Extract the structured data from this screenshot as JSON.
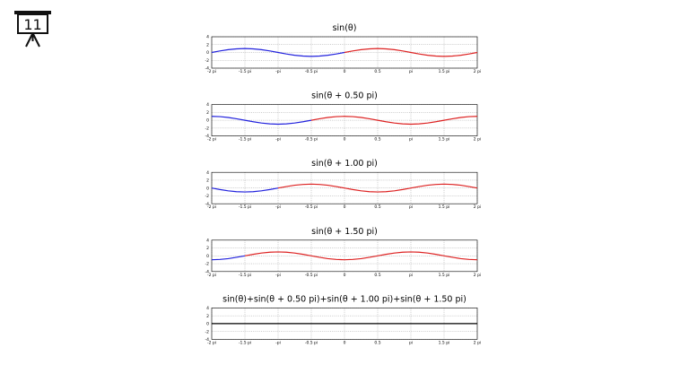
{
  "slide_number": "11",
  "chart_data": [
    {
      "type": "line",
      "title": "sin(θ)",
      "x": [
        -6.28,
        -5.89,
        -5.5,
        -5.11,
        -4.71,
        -4.32,
        -3.93,
        -3.53,
        -3.14,
        -2.75,
        -2.36,
        -1.96,
        -1.57,
        -1.18,
        -0.79,
        -0.39,
        0,
        0.39,
        0.79,
        1.18,
        1.57,
        1.96,
        2.36,
        2.75,
        3.14,
        3.53,
        3.93,
        4.32,
        4.71,
        5.11,
        5.5,
        5.89,
        6.28
      ],
      "series": [
        {
          "color": "#2222dd",
          "values": [
            0,
            0.38,
            0.71,
            0.92,
            1,
            0.92,
            0.71,
            0.38,
            0,
            -0.38,
            -0.71,
            -0.92,
            -1,
            -0.92,
            -0.71,
            -0.38,
            0,
            null,
            null,
            null,
            null,
            null,
            null,
            null,
            null,
            null,
            null,
            null,
            null,
            null,
            null,
            null,
            null
          ]
        },
        {
          "color": "#dd2222",
          "values": [
            null,
            null,
            null,
            null,
            null,
            null,
            null,
            null,
            null,
            null,
            null,
            null,
            null,
            null,
            null,
            null,
            0,
            0.38,
            0.71,
            0.92,
            1,
            0.92,
            0.71,
            0.38,
            0,
            -0.38,
            -0.71,
            -0.92,
            -1,
            -0.92,
            -0.71,
            -0.38,
            0
          ]
        }
      ],
      "xlim": [
        -6.28,
        6.28
      ],
      "xticks": [
        {
          "value": -6.28,
          "label": "-2 pi"
        },
        {
          "value": -4.71,
          "label": "-1.5 pi"
        },
        {
          "value": -3.14,
          "label": "-pi"
        },
        {
          "value": -1.57,
          "label": "-0.5 pi"
        },
        0,
        {
          "value": 1.57,
          "label": "0.5"
        },
        {
          "value": 3.14,
          "label": "pi"
        },
        {
          "value": 4.71,
          "label": "1.5 pi"
        },
        {
          "value": 6.28,
          "label": "2 pi"
        }
      ],
      "ylim": [
        -4,
        4
      ],
      "yticks": [
        -4,
        -2,
        0,
        2,
        4
      ],
      "grid": true
    },
    {
      "type": "line",
      "title": "sin(θ + 0.50 pi)",
      "x": [
        -6.28,
        -5.89,
        -5.5,
        -5.11,
        -4.71,
        -4.32,
        -3.93,
        -3.53,
        -3.14,
        -2.75,
        -2.36,
        -1.96,
        -1.57,
        -1.18,
        -0.79,
        -0.39,
        0,
        0.39,
        0.79,
        1.18,
        1.57,
        1.96,
        2.36,
        2.75,
        3.14,
        3.53,
        3.93,
        4.32,
        4.71,
        5.11,
        5.5,
        5.89,
        6.28
      ],
      "series": [
        {
          "color": "#2222dd",
          "values": [
            1,
            0.92,
            0.71,
            0.38,
            0,
            -0.38,
            -0.71,
            -0.92,
            -1,
            -0.92,
            -0.71,
            -0.38,
            0,
            null,
            null,
            null,
            null,
            null,
            null,
            null,
            null,
            null,
            null,
            null,
            null,
            null,
            null,
            null,
            null,
            null,
            null,
            null,
            null
          ]
        },
        {
          "color": "#dd2222",
          "values": [
            null,
            null,
            null,
            null,
            null,
            null,
            null,
            null,
            null,
            null,
            null,
            null,
            0,
            0.38,
            0.71,
            0.92,
            1,
            0.92,
            0.71,
            0.38,
            0,
            -0.38,
            -0.71,
            -0.92,
            -1,
            -0.92,
            -0.71,
            -0.38,
            0,
            0.38,
            0.71,
            0.92,
            1
          ]
        }
      ],
      "xlim": [
        -6.28,
        6.28
      ],
      "xticks": [
        {
          "value": -6.28,
          "label": "-2 pi"
        },
        {
          "value": -4.71,
          "label": "-1.5 pi"
        },
        {
          "value": -3.14,
          "label": "-pi"
        },
        {
          "value": -1.57,
          "label": "-0.5 pi"
        },
        0,
        {
          "value": 1.57,
          "label": "0.5"
        },
        {
          "value": 3.14,
          "label": "pi"
        },
        {
          "value": 4.71,
          "label": "1.5 pi"
        },
        {
          "value": 6.28,
          "label": "2 pi"
        }
      ],
      "ylim": [
        -4,
        4
      ],
      "yticks": [
        -4,
        -2,
        0,
        2,
        4
      ],
      "grid": true
    },
    {
      "type": "line",
      "title": "sin(θ + 1.00 pi)",
      "x": [
        -6.28,
        -5.89,
        -5.5,
        -5.11,
        -4.71,
        -4.32,
        -3.93,
        -3.53,
        -3.14,
        -2.75,
        -2.36,
        -1.96,
        -1.57,
        -1.18,
        -0.79,
        -0.39,
        0,
        0.39,
        0.79,
        1.18,
        1.57,
        1.96,
        2.36,
        2.75,
        3.14,
        3.53,
        3.93,
        4.32,
        4.71,
        5.11,
        5.5,
        5.89,
        6.28
      ],
      "series": [
        {
          "color": "#2222dd",
          "values": [
            0,
            -0.38,
            -0.71,
            -0.92,
            -1,
            -0.92,
            -0.71,
            -0.38,
            0,
            null,
            null,
            null,
            null,
            null,
            null,
            null,
            null,
            null,
            null,
            null,
            null,
            null,
            null,
            null,
            null,
            null,
            null,
            null,
            null,
            null,
            null,
            null,
            null
          ]
        },
        {
          "color": "#dd2222",
          "values": [
            null,
            null,
            null,
            null,
            null,
            null,
            null,
            null,
            0,
            0.38,
            0.71,
            0.92,
            1,
            0.92,
            0.71,
            0.38,
            0,
            -0.38,
            -0.71,
            -0.92,
            -1,
            -0.92,
            -0.71,
            -0.38,
            0,
            0.38,
            0.71,
            0.92,
            1,
            0.92,
            0.71,
            0.38,
            0
          ]
        }
      ],
      "xlim": [
        -6.28,
        6.28
      ],
      "xticks": [
        {
          "value": -6.28,
          "label": "-2 pi"
        },
        {
          "value": -4.71,
          "label": "-1.5 pi"
        },
        {
          "value": -3.14,
          "label": "-pi"
        },
        {
          "value": -1.57,
          "label": "-0.5 pi"
        },
        0,
        {
          "value": 1.57,
          "label": "0.5"
        },
        {
          "value": 3.14,
          "label": "pi"
        },
        {
          "value": 4.71,
          "label": "1.5 pi"
        },
        {
          "value": 6.28,
          "label": "2 pi"
        }
      ],
      "ylim": [
        -4,
        4
      ],
      "yticks": [
        -4,
        -2,
        0,
        2,
        4
      ],
      "grid": true
    },
    {
      "type": "line",
      "title": "sin(θ + 1.50 pi)",
      "x": [
        -6.28,
        -5.89,
        -5.5,
        -5.11,
        -4.71,
        -4.32,
        -3.93,
        -3.53,
        -3.14,
        -2.75,
        -2.36,
        -1.96,
        -1.57,
        -1.18,
        -0.79,
        -0.39,
        0,
        0.39,
        0.79,
        1.18,
        1.57,
        1.96,
        2.36,
        2.75,
        3.14,
        3.53,
        3.93,
        4.32,
        4.71,
        5.11,
        5.5,
        5.89,
        6.28
      ],
      "series": [
        {
          "color": "#2222dd",
          "values": [
            -1,
            -0.92,
            -0.71,
            -0.38,
            0,
            null,
            null,
            null,
            null,
            null,
            null,
            null,
            null,
            null,
            null,
            null,
            null,
            null,
            null,
            null,
            null,
            null,
            null,
            null,
            null,
            null,
            null,
            null,
            null,
            null,
            null,
            null,
            null
          ]
        },
        {
          "color": "#dd2222",
          "values": [
            null,
            null,
            null,
            null,
            0,
            0.38,
            0.71,
            0.92,
            1,
            0.92,
            0.71,
            0.38,
            0,
            -0.38,
            -0.71,
            -0.92,
            -1,
            -0.92,
            -0.71,
            -0.38,
            0,
            0.38,
            0.71,
            0.92,
            1,
            0.92,
            0.71,
            0.38,
            0,
            -0.38,
            -0.71,
            -0.92,
            -1
          ]
        }
      ],
      "xlim": [
        -6.28,
        6.28
      ],
      "xticks": [
        {
          "value": -6.28,
          "label": "-2 pi"
        },
        {
          "value": -4.71,
          "label": "-1.5 pi"
        },
        {
          "value": -3.14,
          "label": "-pi"
        },
        {
          "value": -1.57,
          "label": "-0.5 pi"
        },
        0,
        {
          "value": 1.57,
          "label": "0.5"
        },
        {
          "value": 3.14,
          "label": "pi"
        },
        {
          "value": 4.71,
          "label": "1.5 pi"
        },
        {
          "value": 6.28,
          "label": "2 pi"
        }
      ],
      "ylim": [
        -4,
        4
      ],
      "yticks": [
        -4,
        -2,
        0,
        2,
        4
      ],
      "grid": true
    },
    {
      "type": "line",
      "title": "sin(θ)+sin(θ + 0.50 pi)+sin(θ + 1.00 pi)+sin(θ + 1.50 pi)",
      "x": [
        -6.28,
        -5.89,
        -5.5,
        -5.11,
        -4.71,
        -4.32,
        -3.93,
        -3.53,
        -3.14,
        -2.75,
        -2.36,
        -1.96,
        -1.57,
        -1.18,
        -0.79,
        -0.39,
        0,
        0.39,
        0.79,
        1.18,
        1.57,
        1.96,
        2.36,
        2.75,
        3.14,
        3.53,
        3.93,
        4.32,
        4.71,
        5.11,
        5.5,
        5.89,
        6.28
      ],
      "series": [
        {
          "color": "#000000",
          "values": [
            0,
            0,
            0,
            0,
            0,
            0,
            0,
            0,
            0,
            0,
            0,
            0,
            0,
            0,
            0,
            0,
            0,
            0,
            0,
            0,
            0,
            0,
            0,
            0,
            0,
            0,
            0,
            0,
            0,
            0,
            0,
            0,
            0
          ]
        }
      ],
      "xlim": [
        -6.28,
        6.28
      ],
      "xticks": [
        {
          "value": -6.28,
          "label": "-2 pi"
        },
        {
          "value": -4.71,
          "label": "-1.5 pi"
        },
        {
          "value": -3.14,
          "label": "-pi"
        },
        {
          "value": -1.57,
          "label": "-0.5 pi"
        },
        0,
        {
          "value": 1.57,
          "label": "0.5"
        },
        {
          "value": 3.14,
          "label": "pi"
        },
        {
          "value": 4.71,
          "label": "1.5 pi"
        },
        {
          "value": 6.28,
          "label": "2 pi"
        }
      ],
      "ylim": [
        -4,
        4
      ],
      "yticks": [
        -4,
        -2,
        0,
        2,
        4
      ],
      "grid": true
    }
  ]
}
